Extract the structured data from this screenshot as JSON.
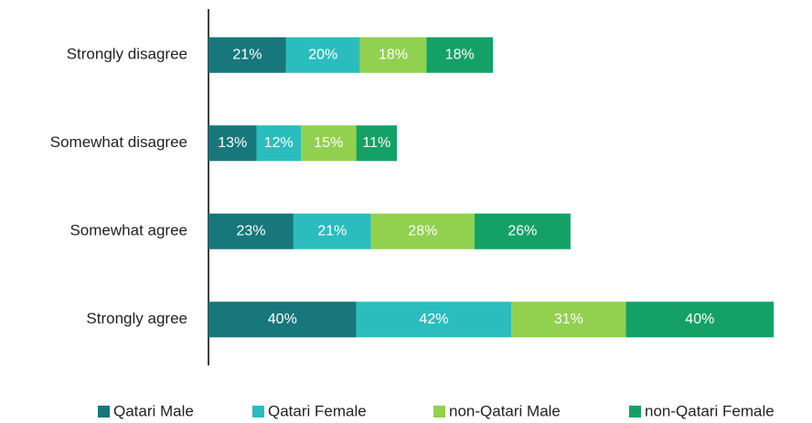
{
  "chart_data": {
    "type": "stacked-bar-horizontal",
    "categories": [
      "Strongly disagree",
      "Somewhat disagree",
      "Somewhat agree",
      "Strongly agree"
    ],
    "series": [
      {
        "name": "Qatari Male",
        "color": "#17777b",
        "values": [
          21,
          13,
          23,
          40
        ],
        "value_labels": [
          "21%",
          "13%",
          "23%",
          "40%"
        ]
      },
      {
        "name": "Qatari Female",
        "color": "#2bbdbd",
        "values": [
          20,
          12,
          21,
          42
        ],
        "value_labels": [
          "20%",
          "12%",
          "21%",
          "42%"
        ]
      },
      {
        "name": "non-Qatari Male",
        "color": "#92d050",
        "values": [
          18,
          15,
          28,
          31
        ],
        "value_labels": [
          "18%",
          "15%",
          "28%",
          "31%"
        ]
      },
      {
        "name": "non-Qatari Female",
        "color": "#14a165",
        "values": [
          18,
          11,
          26,
          40
        ],
        "value_labels": [
          "18%",
          "11%",
          "26%",
          "40%"
        ]
      }
    ],
    "legend": "bottom"
  }
}
